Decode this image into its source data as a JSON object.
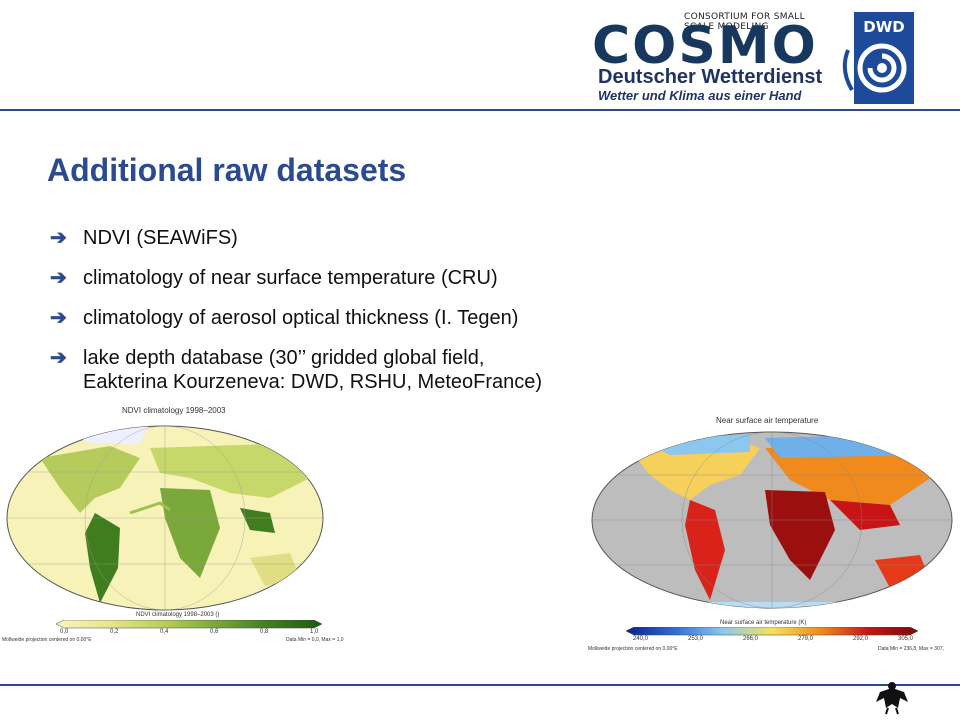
{
  "header": {
    "consortium_text": "CONSORTIUM FOR SMALL SCALE MODELING",
    "cosmo_logo_text": "COSMO",
    "org_name": "Deutscher Wetterdienst",
    "org_tagline": "Wetter und Klima aus einer Hand",
    "dwd_logo_text": "DWD"
  },
  "slide": {
    "title": "Additional  raw datasets",
    "bullets": [
      {
        "text": "NDVI (SEAWiFS)"
      },
      {
        "text": "climatology of near surface temperature (CRU)"
      },
      {
        "text": "climatology of aerosol optical thickness (I. Tegen)"
      },
      {
        "text": "lake depth database (30’’ gridded global field,",
        "text2": "Eakterina Kourzeneva: DWD, RSHU, MeteoFrance)"
      }
    ]
  },
  "maps": {
    "ndvi": {
      "title": "NDVI climatology 1998–2003",
      "colorbar_label": "NDVI climatology 1998–2003 ()",
      "ticks": [
        "0,0",
        "0,2",
        "0,4",
        "0,6",
        "0,8",
        "1,0"
      ],
      "footer_left": "Mollweide projection centered on 0.00°E",
      "footer_right": "Data Min = 0,0, Max = 1,0",
      "colors": [
        "#f7f5c6",
        "#e6e68a",
        "#b9cf5a",
        "#7aa83a",
        "#3f7d1f",
        "#1f5a10"
      ]
    },
    "temp": {
      "title": "Near surface air temperature",
      "colorbar_label": "Near surface air temperature (K)",
      "ticks": [
        "240,0",
        "253,0",
        "266,0",
        "279,0",
        "292,0",
        "305,0"
      ],
      "footer_left": "Mollweide projection centered on 0.00°E",
      "footer_right": "Data Min = 236,8, Max = 307,",
      "colors": [
        "#0a1f8f",
        "#2f6fd6",
        "#8cc7ef",
        "#f5e25a",
        "#f08a1c",
        "#c81414",
        "#7a0a0a"
      ]
    }
  }
}
